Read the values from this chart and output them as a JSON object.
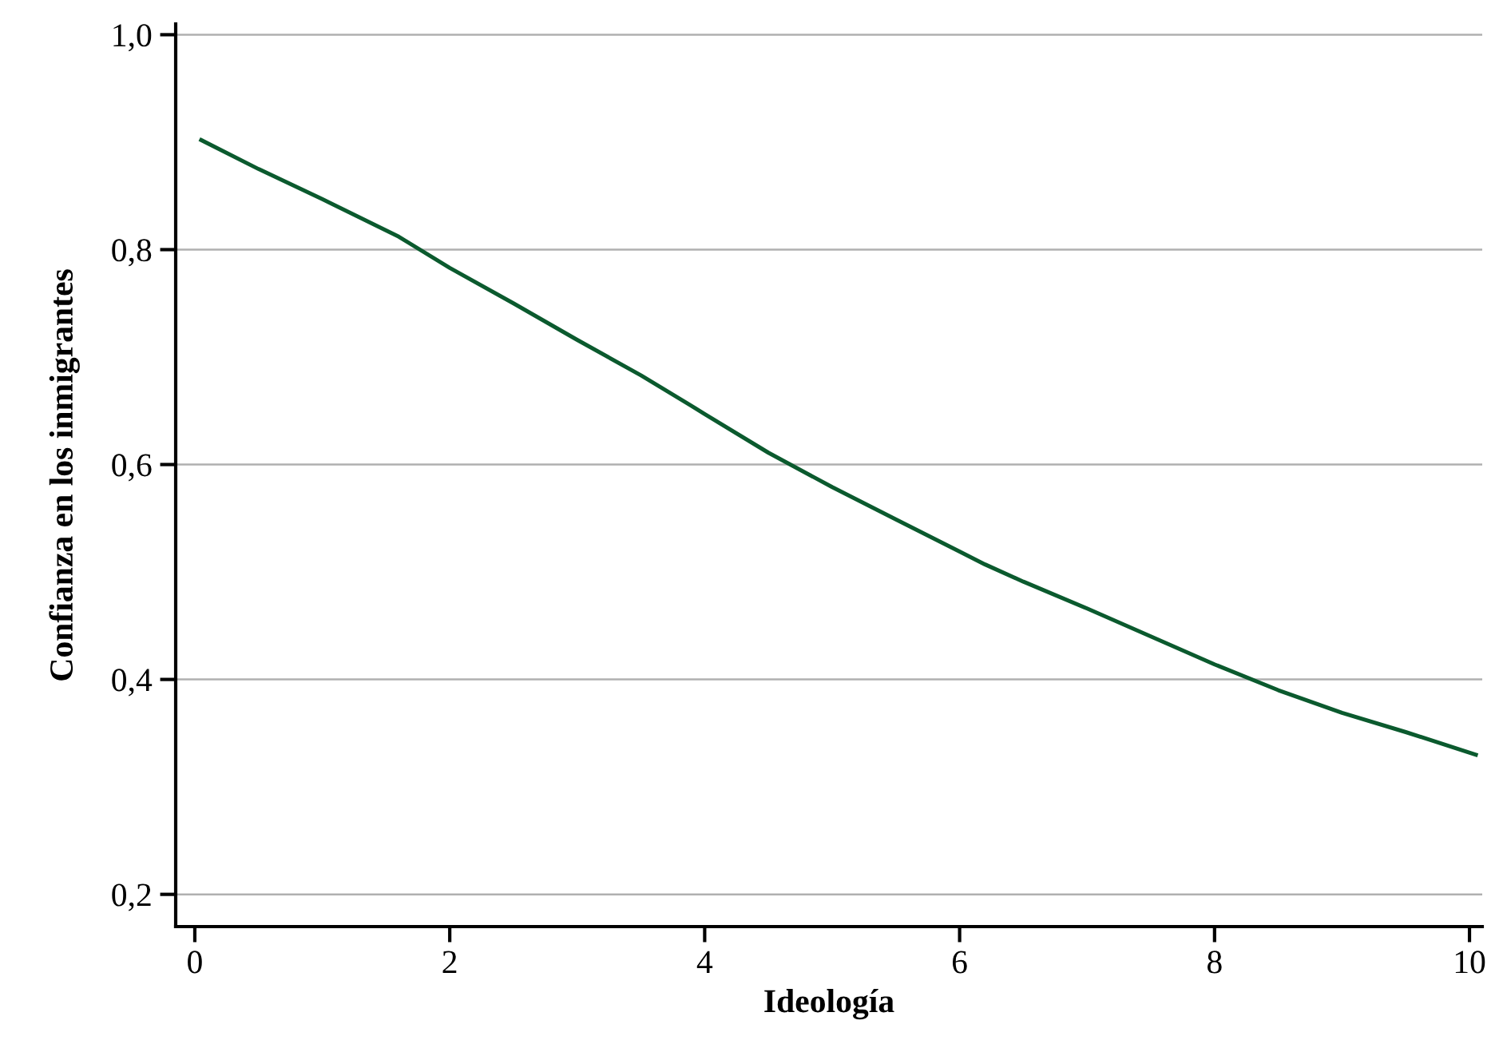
{
  "chart_data": {
    "type": "line",
    "xlabel": "Ideología",
    "ylabel": "Confianza en los inmigrantes",
    "series": [
      {
        "color": "#0b5a2e",
        "x": [
          0.05,
          0.5,
          1,
          1.6,
          2,
          2.5,
          3,
          3.5,
          3.85,
          4,
          4.5,
          5,
          5.5,
          6,
          6.2,
          6.5,
          7,
          7.5,
          8,
          8.5,
          9,
          9.5,
          10.05
        ],
        "values": [
          0.902,
          0.875,
          0.847,
          0.812,
          0.783,
          0.75,
          0.716,
          0.683,
          0.658,
          0.647,
          0.611,
          0.579,
          0.549,
          0.519,
          0.507,
          0.491,
          0.466,
          0.44,
          0.414,
          0.39,
          0.369,
          0.351,
          0.33
        ]
      }
    ],
    "xlim": [
      -0.15,
      10.1
    ],
    "xticks": [
      0,
      2,
      4,
      6,
      8,
      10
    ],
    "ylim": [
      0.17,
      1.01
    ],
    "yticks": [
      {
        "value": 0.2,
        "label": "0,2"
      },
      {
        "value": 0.4,
        "label": "0,4"
      },
      {
        "value": 0.6,
        "label": "0,6"
      },
      {
        "value": 0.8,
        "label": "0,8"
      },
      {
        "value": 1.0,
        "label": "1,0"
      }
    ],
    "grid": "y",
    "line_style": "solid",
    "marker": "none"
  }
}
